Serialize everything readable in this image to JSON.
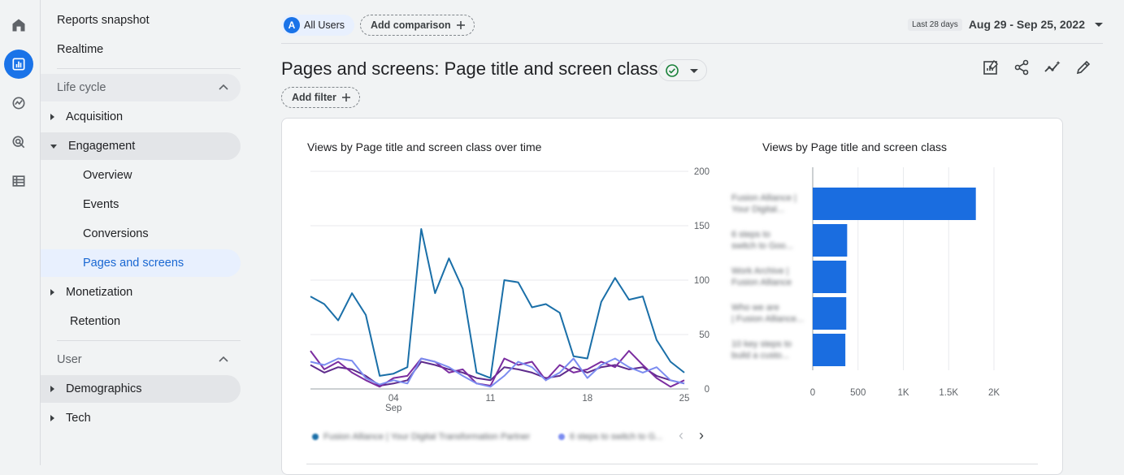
{
  "nav": {
    "reports_snapshot": "Reports snapshot",
    "realtime": "Realtime",
    "lifecycle": "Life cycle",
    "acquisition": "Acquisition",
    "engagement": "Engagement",
    "overview": "Overview",
    "events": "Events",
    "conversions": "Conversions",
    "pages_and_screens": "Pages and screens",
    "monetization": "Monetization",
    "retention": "Retention",
    "user": "User",
    "demographics": "Demographics",
    "tech": "Tech"
  },
  "topbar": {
    "segment_badge": "A",
    "segment_label": "All Users",
    "add_comparison": "Add comparison",
    "date_pill": "Last 28 days",
    "date_range": "Aug 29 - Sep 25, 2022"
  },
  "page": {
    "title": "Pages and screens: Page title and screen class",
    "add_filter": "Add filter"
  },
  "line_chart": {
    "title": "Views by Page title and screen class over time",
    "legend": [
      "Fusion Alliance | Your Digital Transformation Partner",
      "6 steps to switch to G..."
    ],
    "chart_data": {
      "type": "line",
      "x_ticks": [
        {
          "label": "04",
          "sub": "Sep"
        },
        {
          "label": "11",
          "sub": ""
        },
        {
          "label": "18",
          "sub": ""
        },
        {
          "label": "25",
          "sub": ""
        }
      ],
      "y_ticks": [
        "200",
        "150",
        "100",
        "50",
        "0"
      ],
      "ylim": [
        0,
        200
      ],
      "x_count": 28,
      "series": [
        {
          "color": "#1a6fa8",
          "values": [
            85,
            78,
            63,
            88,
            68,
            12,
            14,
            20,
            147,
            88,
            120,
            92,
            15,
            10,
            100,
            98,
            75,
            78,
            70,
            30,
            28,
            80,
            102,
            82,
            85,
            45,
            25,
            15
          ]
        },
        {
          "color": "#7b8cf0",
          "values": [
            25,
            22,
            28,
            26,
            10,
            4,
            8,
            5,
            28,
            25,
            20,
            12,
            5,
            2,
            12,
            25,
            20,
            8,
            15,
            28,
            10,
            22,
            28,
            20,
            15,
            20,
            8,
            5
          ]
        },
        {
          "color": "#7b2da0",
          "values": [
            35,
            18,
            25,
            15,
            8,
            2,
            10,
            12,
            28,
            25,
            15,
            18,
            5,
            3,
            28,
            22,
            25,
            8,
            22,
            15,
            18,
            25,
            20,
            35,
            22,
            10,
            2,
            8
          ]
        },
        {
          "color": "#5e2b8c",
          "values": [
            22,
            15,
            20,
            18,
            12,
            3,
            5,
            8,
            25,
            22,
            18,
            15,
            10,
            8,
            20,
            18,
            15,
            10,
            12,
            20,
            15,
            20,
            22,
            18,
            20,
            12,
            8,
            5
          ]
        }
      ]
    }
  },
  "bar_chart": {
    "title": "Views by Page title and screen class",
    "categories": [
      "Fusion Alliance | Your Digital...",
      "6 steps to switch to Goo...",
      "Work Archive | Fusion Alliance",
      "Who we are | Fusion Alliance...",
      "10 key steps to build a custo..."
    ],
    "chart_data": {
      "type": "bar",
      "x_ticks": [
        "0",
        "500",
        "1K",
        "1.5K",
        "2K"
      ],
      "xlim": [
        0,
        2000
      ],
      "values": [
        1800,
        380,
        370,
        370,
        360
      ],
      "color": "#1a6de0"
    }
  },
  "pager": {
    "prev": "‹",
    "next": "›"
  }
}
